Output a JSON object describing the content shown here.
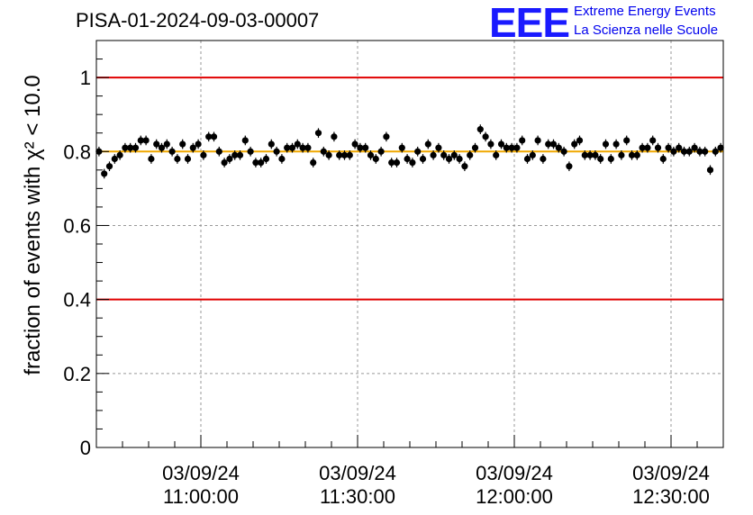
{
  "title": "PISA-01-2024-09-03-00007",
  "logo": {
    "mark": "EEE",
    "line1": "Extreme Energy Events",
    "line2": "La Scienza nelle Scuole"
  },
  "chart_data": {
    "type": "scatter",
    "title": "PISA-01-2024-09-03-00007",
    "ylabel": "fraction of events with χ² < 10.0",
    "ylim": [
      0,
      1.1
    ],
    "yticks": [
      "0",
      "0.2",
      "0.4",
      "0.6",
      "0.8",
      "1"
    ],
    "xlim": [
      "2024-09-03 10:40:00",
      "2024-09-03 12:40:00"
    ],
    "xticks": [
      {
        "date": "03/09/24",
        "time": "11:00:00"
      },
      {
        "date": "03/09/24",
        "time": "11:30:00"
      },
      {
        "date": "03/09/24",
        "time": "12:00:00"
      },
      {
        "date": "03/09/24",
        "time": "12:30:00"
      }
    ],
    "grid": true,
    "reference_lines": [
      {
        "y": 1.0,
        "color": "#e00000"
      },
      {
        "y": 0.4,
        "color": "#e00000"
      },
      {
        "y": 0.8,
        "color": "#f0a800"
      }
    ],
    "series": [
      {
        "x_start": "2024-09-03 10:40:30",
        "x_step_seconds": 60,
        "y": [
          0.8,
          0.74,
          0.76,
          0.78,
          0.79,
          0.81,
          0.81,
          0.81,
          0.83,
          0.83,
          0.78,
          0.82,
          0.81,
          0.82,
          0.8,
          0.78,
          0.82,
          0.78,
          0.81,
          0.82,
          0.79,
          0.84,
          0.84,
          0.8,
          0.77,
          0.78,
          0.79,
          0.79,
          0.83,
          0.8,
          0.77,
          0.77,
          0.78,
          0.82,
          0.8,
          0.78,
          0.81,
          0.81,
          0.82,
          0.81,
          0.81,
          0.77,
          0.85,
          0.8,
          0.79,
          0.84,
          0.79,
          0.79,
          0.79,
          0.82,
          0.81,
          0.81,
          0.79,
          0.78,
          0.8,
          0.84,
          0.77,
          0.77,
          0.81,
          0.78,
          0.77,
          0.8,
          0.78,
          0.82,
          0.79,
          0.81,
          0.79,
          0.78,
          0.79,
          0.78,
          0.76,
          0.79,
          0.81,
          0.86,
          0.84,
          0.82,
          0.79,
          0.82,
          0.81,
          0.81,
          0.81,
          0.83,
          0.78,
          0.79,
          0.83,
          0.78,
          0.82,
          0.82,
          0.81,
          0.8,
          0.76,
          0.82,
          0.83,
          0.79,
          0.79,
          0.79,
          0.78,
          0.82,
          0.78,
          0.82,
          0.79,
          0.83,
          0.79,
          0.79,
          0.81,
          0.81,
          0.83,
          0.81,
          0.78,
          0.81,
          0.8,
          0.81,
          0.8,
          0.8,
          0.81,
          0.8,
          0.8,
          0.75,
          0.8,
          0.81
        ],
        "error": 0.013
      }
    ]
  }
}
